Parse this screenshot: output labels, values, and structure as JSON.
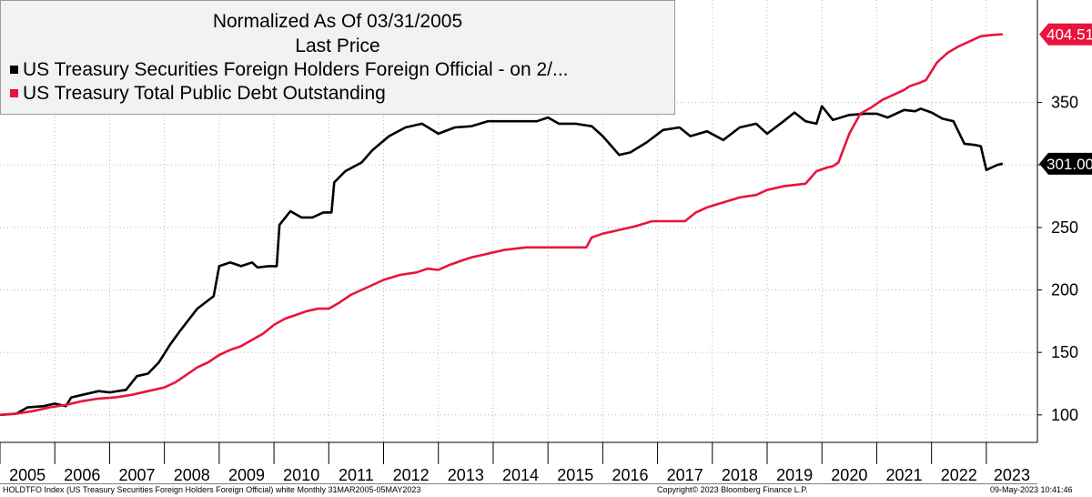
{
  "chart_data": {
    "type": "line",
    "title": "Normalized As Of 03/31/2005",
    "subtitle": "Last Price",
    "xlabel": "",
    "ylabel": "",
    "ylim": [
      78,
      432
    ],
    "xlim": [
      2005.0,
      2023.6
    ],
    "yticks": [
      100,
      150,
      200,
      250,
      300,
      350
    ],
    "xticks": [
      "2005",
      "2006",
      "2007",
      "2008",
      "2009",
      "2010",
      "2011",
      "2012",
      "2013",
      "2014",
      "2015",
      "2016",
      "2017",
      "2018",
      "2019",
      "2020",
      "2021",
      "2022",
      "2023"
    ],
    "grid": true,
    "legend_position": "top-left",
    "series": [
      {
        "name": "US Treasury Securities Foreign Holders Foreign Official -  on 2/...",
        "color": "#000000",
        "last_value": "301.00",
        "x": [
          2005.0,
          2005.3,
          2005.5,
          2005.8,
          2006.0,
          2006.2,
          2006.3,
          2006.5,
          2006.8,
          2007.0,
          2007.3,
          2007.5,
          2007.7,
          2007.9,
          2008.1,
          2008.3,
          2008.6,
          2008.9,
          2009.0,
          2009.2,
          2009.4,
          2009.6,
          2009.7,
          2009.9,
          2010.05,
          2010.1,
          2010.3,
          2010.5,
          2010.7,
          2010.9,
          2011.05,
          2011.1,
          2011.3,
          2011.6,
          2011.8,
          2012.1,
          2012.4,
          2012.7,
          2013.0,
          2013.3,
          2013.6,
          2013.9,
          2014.2,
          2014.5,
          2014.8,
          2015.0,
          2015.2,
          2015.5,
          2015.8,
          2016.0,
          2016.3,
          2016.5,
          2016.8,
          2017.1,
          2017.4,
          2017.6,
          2017.9,
          2018.2,
          2018.5,
          2018.8,
          2019.0,
          2019.3,
          2019.5,
          2019.7,
          2019.9,
          2020.0,
          2020.2,
          2020.5,
          2020.8,
          2021.0,
          2021.2,
          2021.5,
          2021.7,
          2021.8,
          2022.0,
          2022.2,
          2022.4,
          2022.6,
          2022.8,
          2022.9,
          2023.0,
          2023.2,
          2023.3
        ],
        "values": [
          100,
          101,
          106,
          107,
          109,
          107,
          114,
          116,
          119,
          118,
          120,
          131,
          133,
          142,
          156,
          168,
          185,
          195,
          219,
          222,
          219,
          222,
          218,
          219,
          219,
          252,
          263,
          258,
          258,
          262,
          262,
          286,
          295,
          302,
          312,
          323,
          330,
          333,
          325,
          330,
          331,
          335,
          335,
          335,
          335,
          338,
          333,
          333,
          331,
          323,
          308,
          310,
          318,
          328,
          330,
          323,
          327,
          320,
          330,
          333,
          325,
          335,
          342,
          335,
          333,
          347,
          336,
          340,
          341,
          341,
          338,
          344,
          343,
          345,
          342,
          337,
          335,
          317,
          316,
          315,
          296,
          300,
          301
        ]
      },
      {
        "name": "US Treasury Total Public Debt Outstanding",
        "color": "#e8143c",
        "last_value": "404.51",
        "x": [
          2005.0,
          2005.3,
          2005.6,
          2005.9,
          2006.2,
          2006.5,
          2006.8,
          2007.1,
          2007.4,
          2007.7,
          2008.0,
          2008.2,
          2008.4,
          2008.6,
          2008.8,
          2009.0,
          2009.2,
          2009.4,
          2009.6,
          2009.8,
          2010.0,
          2010.2,
          2010.4,
          2010.6,
          2010.8,
          2011.0,
          2011.2,
          2011.4,
          2011.6,
          2011.8,
          2012.0,
          2012.3,
          2012.6,
          2012.8,
          2013.0,
          2013.2,
          2013.4,
          2013.6,
          2013.8,
          2014.0,
          2014.2,
          2014.4,
          2014.6,
          2014.8,
          2015.0,
          2015.2,
          2015.4,
          2015.7,
          2015.8,
          2016.0,
          2016.3,
          2016.6,
          2016.9,
          2017.1,
          2017.3,
          2017.5,
          2017.7,
          2017.9,
          2018.2,
          2018.5,
          2018.8,
          2019.0,
          2019.3,
          2019.5,
          2019.7,
          2019.9,
          2020.1,
          2020.2,
          2020.3,
          2020.5,
          2020.7,
          2020.9,
          2021.1,
          2021.3,
          2021.5,
          2021.6,
          2021.8,
          2021.9,
          2022.1,
          2022.3,
          2022.5,
          2022.7,
          2022.9,
          2023.1,
          2023.3
        ],
        "values": [
          100,
          101,
          103,
          106,
          108,
          111,
          113,
          114,
          116,
          119,
          122,
          126,
          132,
          138,
          142,
          148,
          152,
          155,
          160,
          165,
          172,
          177,
          180,
          183,
          185,
          185,
          190,
          196,
          200,
          204,
          208,
          212,
          214,
          217,
          216,
          220,
          223,
          226,
          228,
          230,
          232,
          233,
          234,
          234,
          234,
          234,
          234,
          234,
          242,
          245,
          248,
          251,
          255,
          255,
          255,
          255,
          262,
          266,
          270,
          274,
          276,
          280,
          283,
          284,
          285,
          295,
          298,
          299,
          302,
          325,
          341,
          346,
          352,
          356,
          360,
          363,
          366,
          368,
          382,
          390,
          395,
          399,
          403,
          404,
          404.51
        ]
      }
    ]
  },
  "footer": {
    "left": "HOLDTFO Index (US Treasury Securities Foreign Holders Foreign Official) white  Monthly 31MAR2005-05MAY2023",
    "center": "Copyright© 2023 Bloomberg Finance L.P.",
    "right": "09-May-2023 10:41:46"
  }
}
